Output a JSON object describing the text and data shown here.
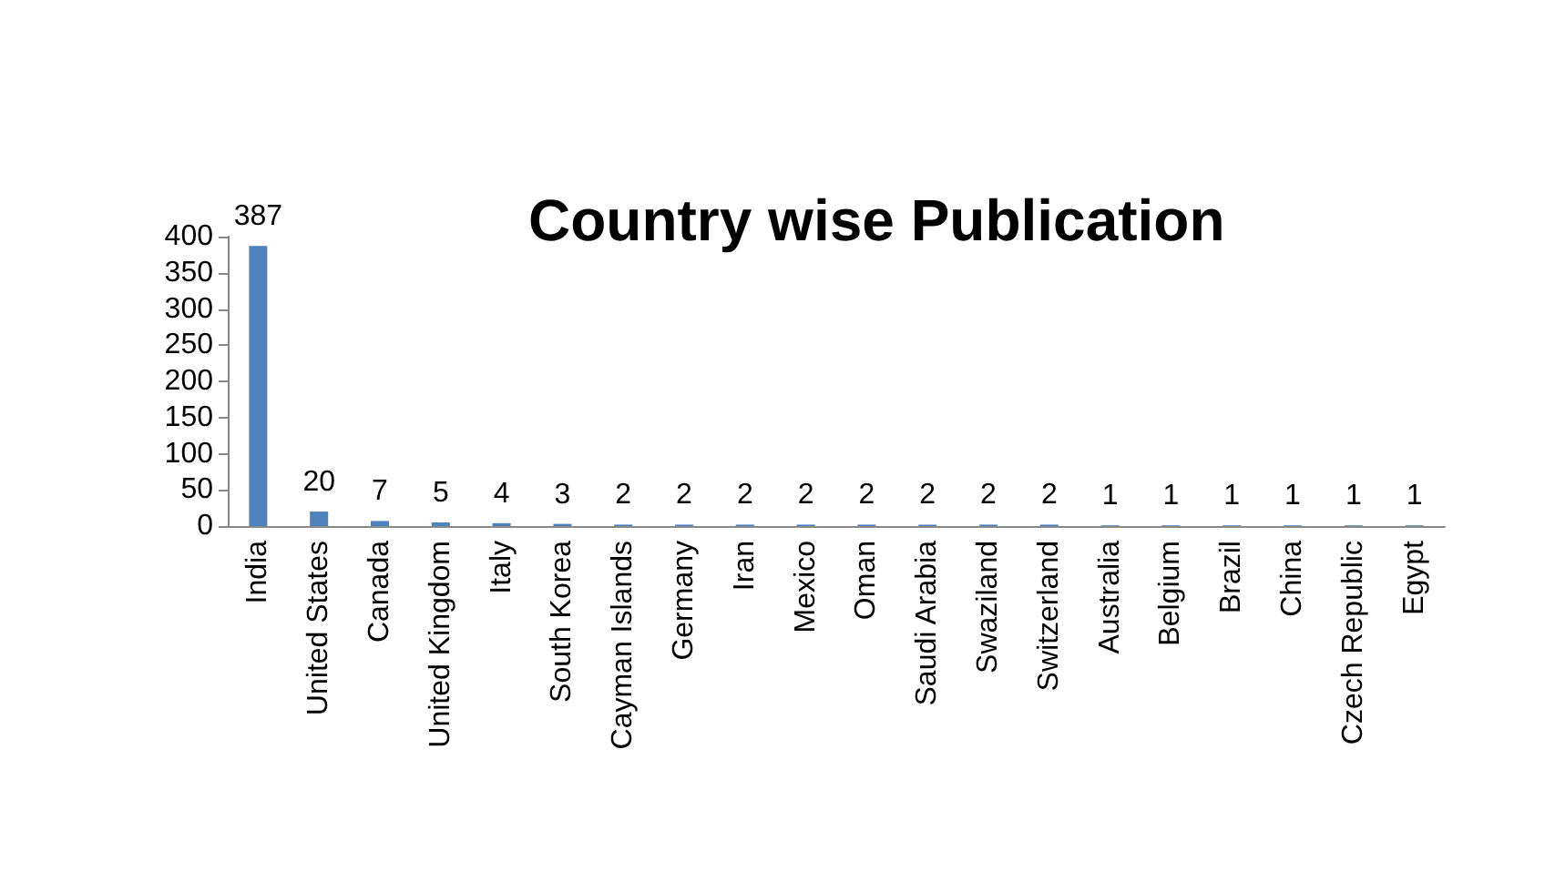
{
  "chart_data": {
    "type": "bar",
    "title": "Country wise Publication",
    "categories": [
      "India",
      "United States",
      "Canada",
      "United Kingdom",
      "Italy",
      "South Korea",
      "Cayman Islands",
      "Germany",
      "Iran",
      "Mexico",
      "Oman",
      "Saudi Arabia",
      "Swaziland",
      "Switzerland",
      "Australia",
      "Belgium",
      "Brazil",
      "China",
      "Czech Republic",
      "Egypt"
    ],
    "values": [
      387,
      20,
      7,
      5,
      4,
      3,
      2,
      2,
      2,
      2,
      2,
      2,
      2,
      2,
      1,
      1,
      1,
      1,
      1,
      1
    ],
    "color": "#4f81bd",
    "ylim": [
      0,
      400
    ],
    "yticks": [
      0,
      50,
      100,
      150,
      200,
      250,
      300,
      350,
      400
    ],
    "grid": false,
    "data_labels": true
  }
}
